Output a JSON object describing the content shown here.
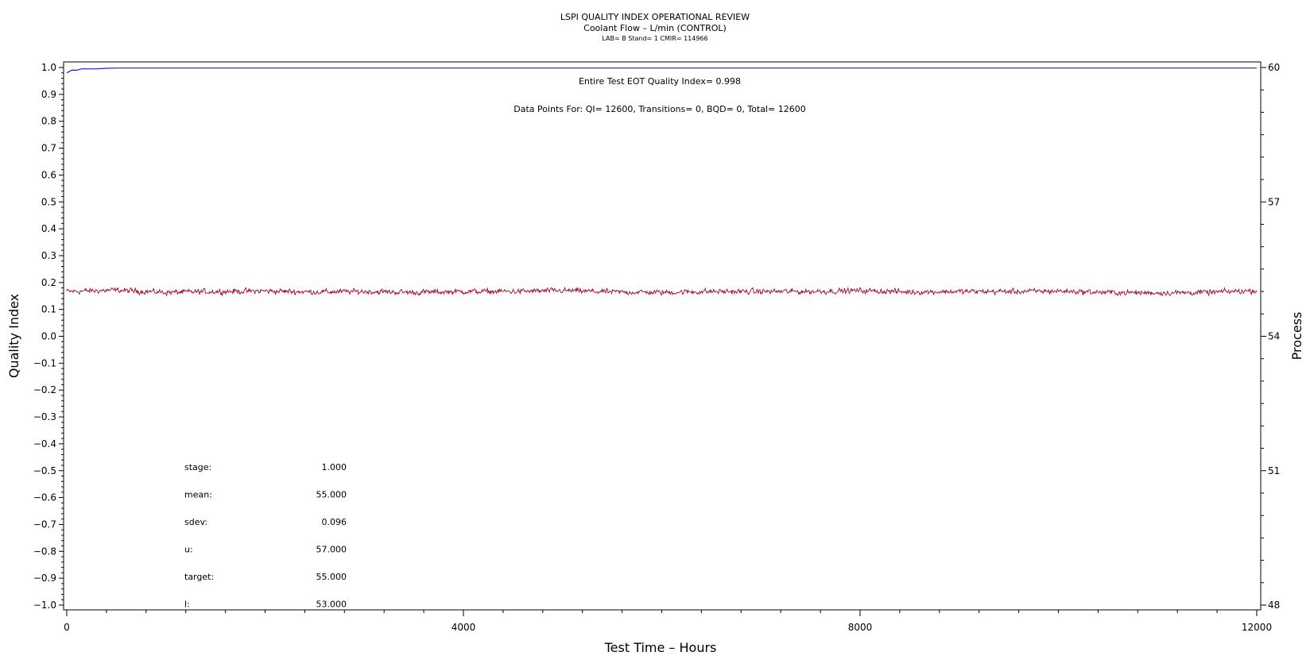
{
  "chart_data": {
    "type": "line",
    "title": "LSPI QUALITY INDEX OPERATIONAL REVIEW",
    "subtitle": "Coolant Flow – L/min (CONTROL)",
    "subtitle2": "LAB= B Stand= 1 CMIR= 114966",
    "xlabel": "Test Time – Hours",
    "ylabel": "Quality Index",
    "y2label": "Process",
    "xlim": [
      0,
      12000
    ],
    "ylim": [
      -1.0,
      1.0
    ],
    "y2lim": [
      48,
      60
    ],
    "x_ticks": [
      "0",
      "4000",
      "8000",
      "12000"
    ],
    "y_ticks": [
      "1.0",
      "0.9",
      "0.8",
      "0.7",
      "0.6",
      "0.5",
      "0.4",
      "0.3",
      "0.2",
      "0.1",
      "0.0",
      "−0.1",
      "−0.2",
      "−0.3",
      "−0.4",
      "−0.5",
      "−0.6",
      "−0.7",
      "−0.8",
      "−0.9",
      "−1.0"
    ],
    "y2_ticks": [
      "60",
      "57",
      "54",
      "51",
      "48"
    ],
    "grid": false,
    "annotations": {
      "eot": "Entire Test EOT Quality Index=   0.998",
      "points": "Data Points For: QI= 12600, Transitions=     0, BQD=     0, Total= 12600"
    },
    "stats": [
      {
        "label": "stage:",
        "value": "1.000"
      },
      {
        "label": "mean:",
        "value": "55.000"
      },
      {
        "label": "sdev:",
        "value": "0.096"
      },
      {
        "label": "u:",
        "value": "57.000"
      },
      {
        "label": "target:",
        "value": "55.000"
      },
      {
        "label": "l:",
        "value": "53.000"
      }
    ],
    "series": [
      {
        "axis": "left",
        "color": "#1f1fbf",
        "x": [
          0,
          50,
          100,
          150,
          200,
          300,
          400,
          500,
          12000
        ],
        "values": [
          0.98,
          0.99,
          0.99,
          0.995,
          0.995,
          0.995,
          0.997,
          0.998,
          0.998
        ]
      },
      {
        "axis": "right",
        "color": "#a0102a",
        "mean": 55.0,
        "sdev": 0.096,
        "count": 12600,
        "x": [
          0,
          500,
          1000,
          1500,
          2000,
          2500,
          3000,
          3500,
          4000,
          4500,
          5000,
          5500,
          6000,
          6500,
          7000,
          7500,
          8000,
          8500,
          9000,
          9500,
          10000,
          10500,
          11000,
          11500,
          12000
        ],
        "values": [
          55.0,
          55.03,
          54.98,
          55.0,
          55.01,
          54.99,
          55.0,
          54.98,
          55.0,
          55.0,
          55.02,
          54.99,
          54.98,
          55.0,
          55.0,
          55.0,
          55.02,
          54.99,
          55.0,
          55.0,
          55.01,
          54.98,
          54.97,
          54.98,
          55.02
        ]
      }
    ]
  }
}
